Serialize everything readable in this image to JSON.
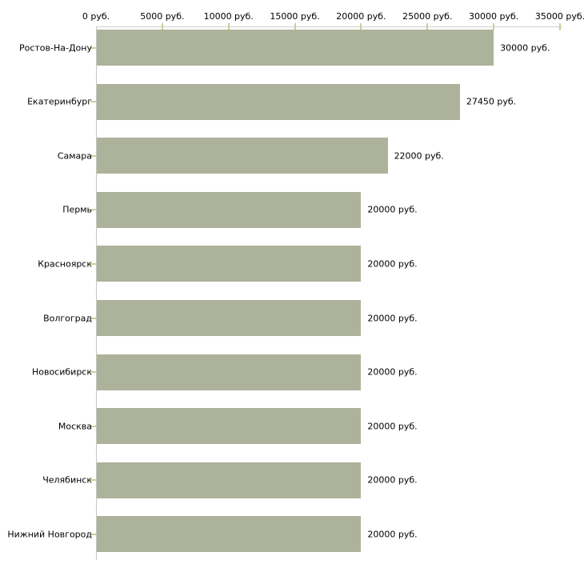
{
  "chart_data": {
    "type": "bar",
    "orientation": "horizontal",
    "title": "",
    "xlabel": "",
    "ylabel": "",
    "xlim": [
      0,
      35000
    ],
    "grid": false,
    "legend": "none",
    "x_tick_values": [
      0,
      5000,
      10000,
      15000,
      20000,
      25000,
      30000,
      35000
    ],
    "x_tick_labels": [
      "0 руб.",
      "5000 руб.",
      "10000 руб.",
      "15000 руб.",
      "20000 руб.",
      "25000 руб.",
      "30000 руб.",
      "35000 руб."
    ],
    "categories": [
      "Ростов-На-Дону",
      "Екатеринбург",
      "Самара",
      "Пермь",
      "Красноярск",
      "Волгоград",
      "Новосибирск",
      "Москва",
      "Челябинск",
      "Нижний Новгород"
    ],
    "values": [
      30000,
      27450,
      22000,
      20000,
      20000,
      20000,
      20000,
      20000,
      20000,
      20000
    ],
    "value_labels": [
      "30000 руб.",
      "27450 руб.",
      "22000 руб.",
      "20000 руб.",
      "20000 руб.",
      "20000 руб.",
      "20000 руб.",
      "20000 руб.",
      "20000 руб.",
      "20000 руб."
    ],
    "colors": {
      "bar_fill": "#adb39a",
      "x_axis_line": "#d1d1cb",
      "y_axis_line": "#c6c6c1",
      "tick_mark": "#cfcc9c",
      "text": "#000000",
      "background": "#ffffff"
    }
  }
}
